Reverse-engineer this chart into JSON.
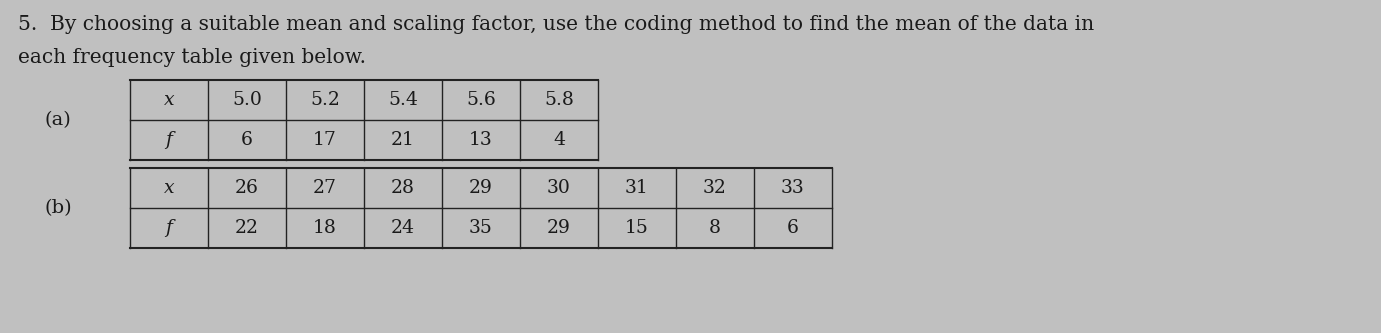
{
  "title_line1": "5.  By choosing a suitable mean and scaling factor, use the coding method to find the mean of the data in",
  "title_line2": "each frequency table given below.",
  "label_a": "(a)",
  "label_b": "(b)",
  "table_a_headers": [
    "x",
    "5.0",
    "5.2",
    "5.4",
    "5.6",
    "5.8"
  ],
  "table_a_row2_header": "f",
  "table_a_row2": [
    "6",
    "17",
    "21",
    "13",
    "4"
  ],
  "table_b_headers": [
    "x",
    "26",
    "27",
    "28",
    "29",
    "30",
    "31",
    "32",
    "33"
  ],
  "table_b_row2_header": "f",
  "table_b_row2": [
    "22",
    "18",
    "24",
    "35",
    "29",
    "15",
    "8",
    "6"
  ],
  "bg_color": "#c8c8c8",
  "text_color": "#1a1a1a",
  "font_size_title": 14.5,
  "font_size_table": 13.5,
  "font_size_label": 14.0
}
